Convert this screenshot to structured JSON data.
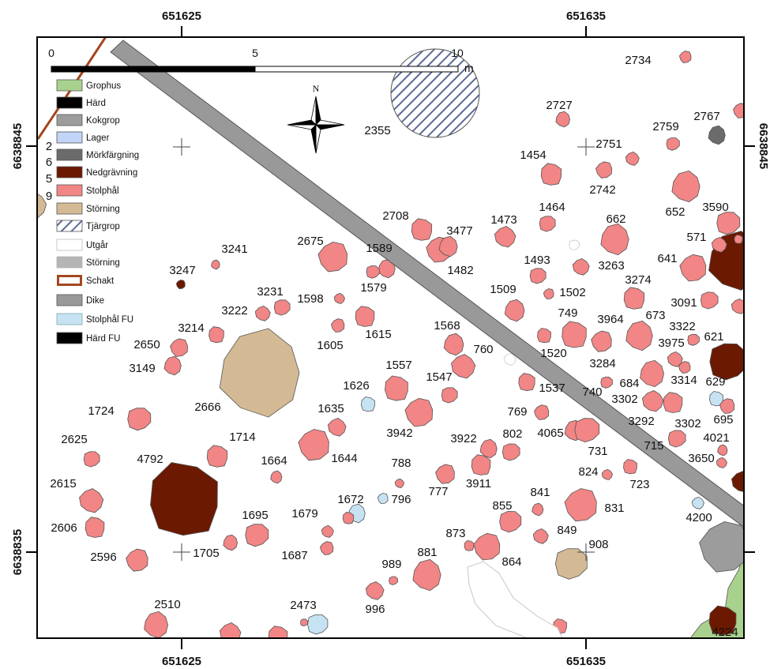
{
  "grid_labels": {
    "top": [
      "651625",
      "651635"
    ],
    "bottom": [
      "651625",
      "651635"
    ],
    "left": [
      "6638845",
      "6638835"
    ],
    "right": [
      "6638845"
    ]
  },
  "scale_bar": {
    "ticks": [
      "0",
      "5",
      "10"
    ],
    "unit": "m"
  },
  "north_arrow": {
    "label": "N"
  },
  "legend": [
    {
      "label": "Grophus",
      "color": "#a9d18e"
    },
    {
      "label": "Härd",
      "color": "#000000"
    },
    {
      "label": "Kokgrop",
      "color": "#9c9c9c"
    },
    {
      "label": "Lager",
      "color": "#c2d4f7"
    },
    {
      "label": "Mörkfärgning",
      "color": "#6b6b6b"
    },
    {
      "label": "Nedgrävning",
      "color": "#6b1900"
    },
    {
      "label": "Stolphål",
      "color": "#f28585"
    },
    {
      "label": "Störning",
      "color": "#d4ba94"
    },
    {
      "label": "Tjärgrop",
      "color": "#5c6996"
    },
    {
      "label": "Utgår",
      "color": "#c8c8c8"
    },
    {
      "label": "Störning",
      "color": "#b5b5b5"
    },
    {
      "label": "Schakt",
      "color": "#a3471e"
    },
    {
      "label": "Dike",
      "color": "#999999"
    },
    {
      "label": "Stolphål FU",
      "color": "#c7e3f3"
    },
    {
      "label": "Härd FU",
      "color": "#000000"
    }
  ],
  "feature_labels": [
    "2",
    "6",
    "5",
    "9",
    "2734",
    "2727",
    "2767",
    "2759",
    "2751",
    "2355",
    "1454",
    "2742",
    "652",
    "3590",
    "2708",
    "1464",
    "1473",
    "662",
    "3477",
    "571",
    "2675",
    "1589",
    "3241",
    "641",
    "1493",
    "3263",
    "1482",
    "3247",
    "3274",
    "1579",
    "1509",
    "3231",
    "1502",
    "1598",
    "3091",
    "3222",
    "749",
    "673",
    "3964",
    "1568",
    "3322",
    "3214",
    "1615",
    "621",
    "3975",
    "2650",
    "1605",
    "760",
    "1520",
    "3284",
    "1557",
    "3149",
    "1547",
    "3314",
    "629",
    "684",
    "1626",
    "1537",
    "740",
    "3302",
    "2666",
    "1635",
    "1724",
    "769",
    "695",
    "3292",
    "3302",
    "3942",
    "4065",
    "802",
    "1714",
    "3922",
    "2625",
    "4021",
    "715",
    "731",
    "3650",
    "1644",
    "4792",
    "1664",
    "788",
    "824",
    "2615",
    "3911",
    "723",
    "777",
    "841",
    "1672",
    "796",
    "855",
    "831",
    "1679",
    "1695",
    "4200",
    "2606",
    "849",
    "873",
    "908",
    "881",
    "1705",
    "1687",
    "2596",
    "864",
    "989",
    "2510",
    "2473",
    "996",
    "4224"
  ]
}
